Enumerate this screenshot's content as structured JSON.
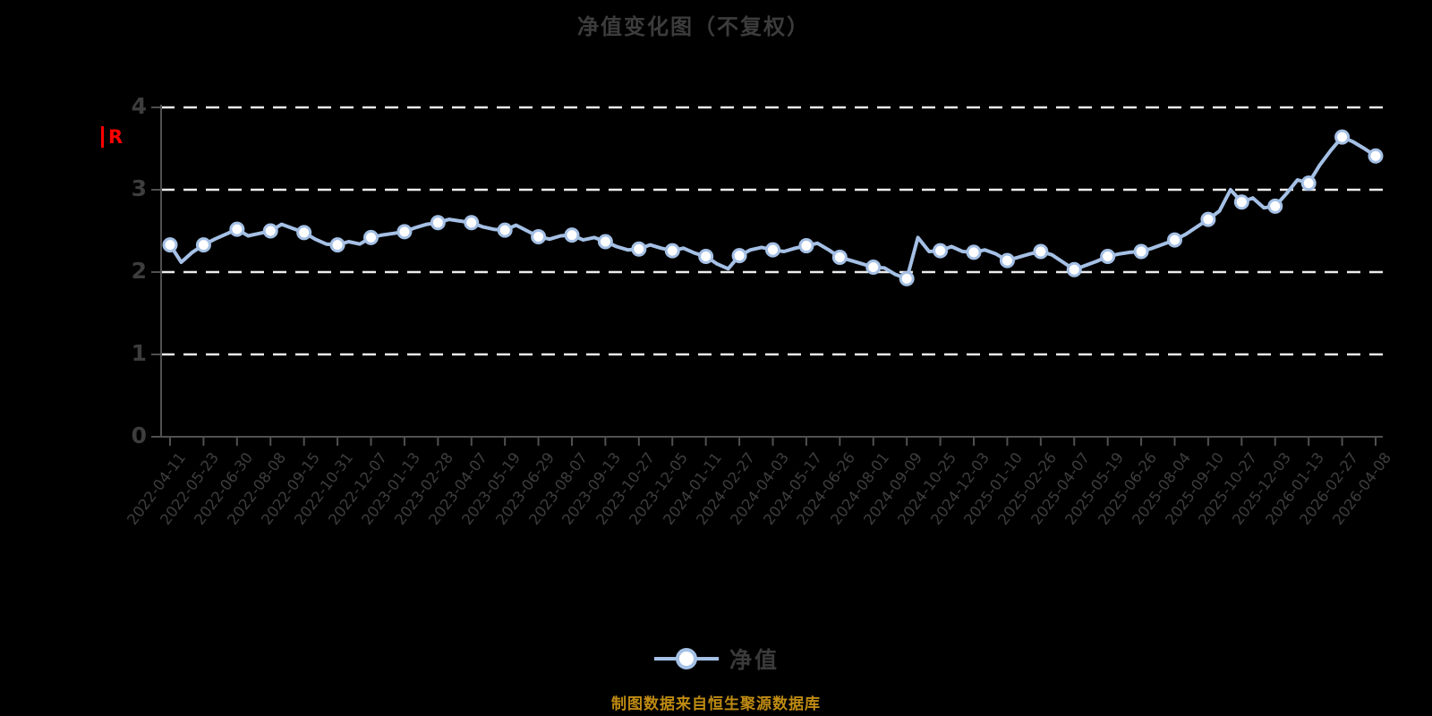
{
  "title": "净值变化图（不复权）",
  "y_axis_unit": "R",
  "legend": {
    "label": "净值"
  },
  "footer": "制图数据来自恒生聚源数据库",
  "colors": {
    "background": "#000000",
    "line": "#a5c0e5",
    "marker_fill": "#ffffff",
    "grid": "#ececec",
    "axis": "#505050",
    "tick_label": "#3e3e3e",
    "title": "#3c3c3c",
    "footer": "#bf8b12",
    "unit_label": "#ff0000"
  },
  "chart_data": {
    "type": "line",
    "title": "净值变化图（不复权）",
    "series_name": "净值",
    "xlabel": "",
    "ylabel": "",
    "ylim": [
      0,
      4
    ],
    "y_ticks": [
      "0",
      "1",
      "2",
      "3",
      "4"
    ],
    "grid": "horizontal-dashed",
    "legend_position": "bottom",
    "categories": [
      "2022-04-11",
      "2022-05-23",
      "2022-06-30",
      "2022-08-08",
      "2022-09-15",
      "2022-10-31",
      "2022-12-07",
      "2023-01-13",
      "2023-02-28",
      "2023-04-07",
      "2023-05-19",
      "2023-06-29",
      "2023-08-07",
      "2023-09-13",
      "2023-10-27",
      "2023-12-05",
      "2024-01-11",
      "2024-02-27",
      "2024-04-03",
      "2024-05-17",
      "2024-06-26",
      "2024-08-01",
      "2024-09-09",
      "2024-10-25",
      "2024-12-03",
      "2025-01-10",
      "2025-02-26",
      "2025-04-07",
      "2025-05-19",
      "2025-06-26",
      "2025-08-04",
      "2025-09-10",
      "2025-10-27",
      "2025-12-03",
      "2026-01-13",
      "2026-02-27",
      "2026-04-08"
    ],
    "values": [
      2.33,
      2.33,
      2.52,
      2.5,
      2.48,
      2.33,
      2.42,
      2.49,
      2.6,
      2.6,
      2.51,
      2.43,
      2.45,
      2.37,
      2.28,
      2.26,
      2.19,
      2.2,
      2.27,
      2.32,
      2.18,
      2.06,
      1.92,
      2.26,
      2.24,
      2.14,
      2.25,
      2.03,
      2.19,
      2.25,
      2.39,
      2.64,
      2.85,
      2.8,
      3.08,
      3.64,
      3.41
    ],
    "dense_values": [
      2.33,
      2.12,
      2.24,
      2.33,
      2.4,
      2.46,
      2.52,
      2.44,
      2.47,
      2.5,
      2.58,
      2.53,
      2.48,
      2.4,
      2.34,
      2.33,
      2.37,
      2.34,
      2.42,
      2.45,
      2.47,
      2.49,
      2.54,
      2.58,
      2.6,
      2.64,
      2.62,
      2.6,
      2.55,
      2.52,
      2.51,
      2.57,
      2.5,
      2.43,
      2.4,
      2.44,
      2.45,
      2.39,
      2.42,
      2.37,
      2.31,
      2.27,
      2.28,
      2.33,
      2.29,
      2.26,
      2.29,
      2.23,
      2.19,
      2.1,
      2.04,
      2.2,
      2.27,
      2.3,
      2.27,
      2.25,
      2.29,
      2.32,
      2.35,
      2.27,
      2.18,
      2.14,
      2.1,
      2.06,
      2.05,
      1.97,
      1.92,
      2.42,
      2.25,
      2.26,
      2.31,
      2.25,
      2.24,
      2.27,
      2.22,
      2.14,
      2.18,
      2.22,
      2.25,
      2.21,
      2.12,
      2.03,
      2.08,
      2.13,
      2.19,
      2.22,
      2.24,
      2.25,
      2.29,
      2.34,
      2.39,
      2.46,
      2.55,
      2.64,
      2.74,
      3.0,
      2.85,
      2.9,
      2.78,
      2.8,
      2.95,
      3.12,
      3.08,
      3.3,
      3.48,
      3.64,
      3.58,
      3.5,
      3.41
    ]
  }
}
